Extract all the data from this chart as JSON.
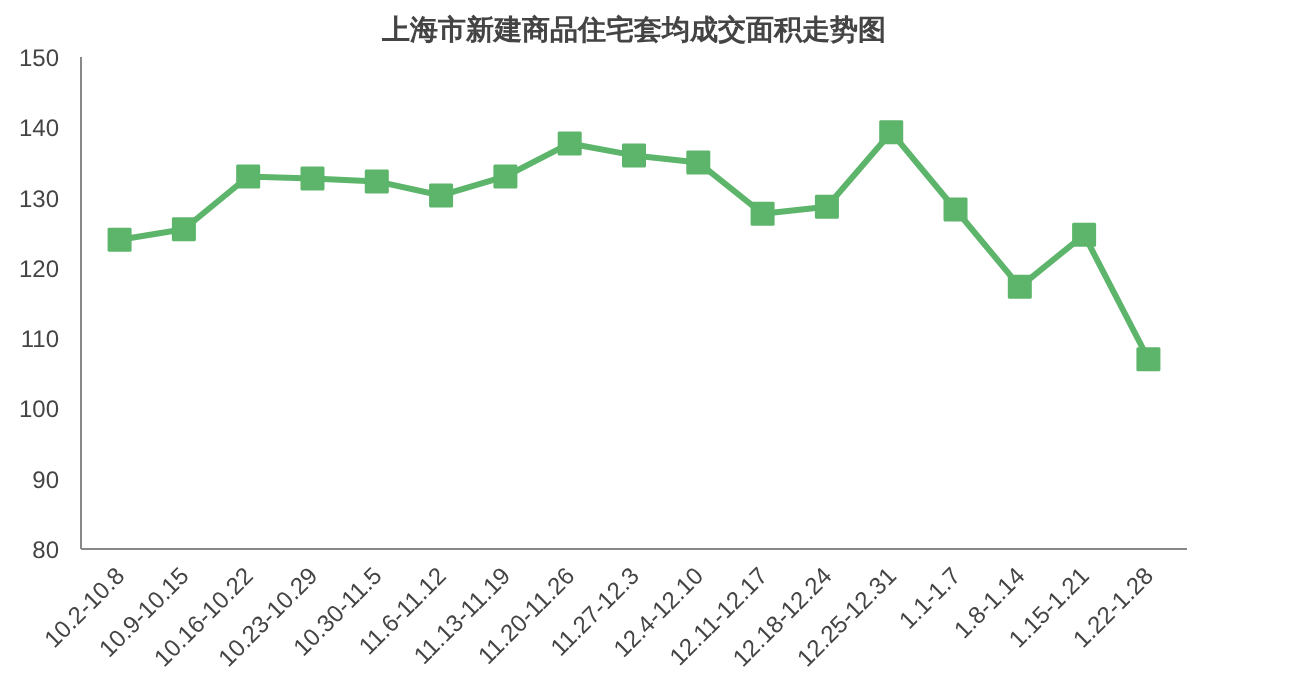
{
  "chart_data": {
    "type": "line",
    "title": "上海市新建商品住宅套均成交面积走势图",
    "categories": [
      "10.2-10.8",
      "10.9-10.15",
      "10.16-10.22",
      "10.23-10.29",
      "10.30-11.5",
      "11.6-11.12",
      "11.13-11.19",
      "11.20-11.26",
      "11.27-12.3",
      "12.4-12.10",
      "12.11-12.17",
      "12.18-12.24",
      "12.25-12.31",
      "1.1-1.7",
      "1.8-1.14",
      "1.15-1.21",
      "1.22-1.28"
    ],
    "series": [
      {
        "color": "#5cb56a",
        "values": [
          124,
          125.5,
          133,
          132.7,
          132.3,
          130.3,
          133,
          137.7,
          136,
          135,
          127.7,
          128.7,
          139.3,
          128.3,
          117.3,
          124.7,
          107
        ]
      }
    ],
    "ylim": [
      80,
      150
    ],
    "yticks": [
      80,
      90,
      100,
      110,
      120,
      130,
      140,
      150
    ],
    "grid": false,
    "marker": "square",
    "line_style": "solid"
  }
}
